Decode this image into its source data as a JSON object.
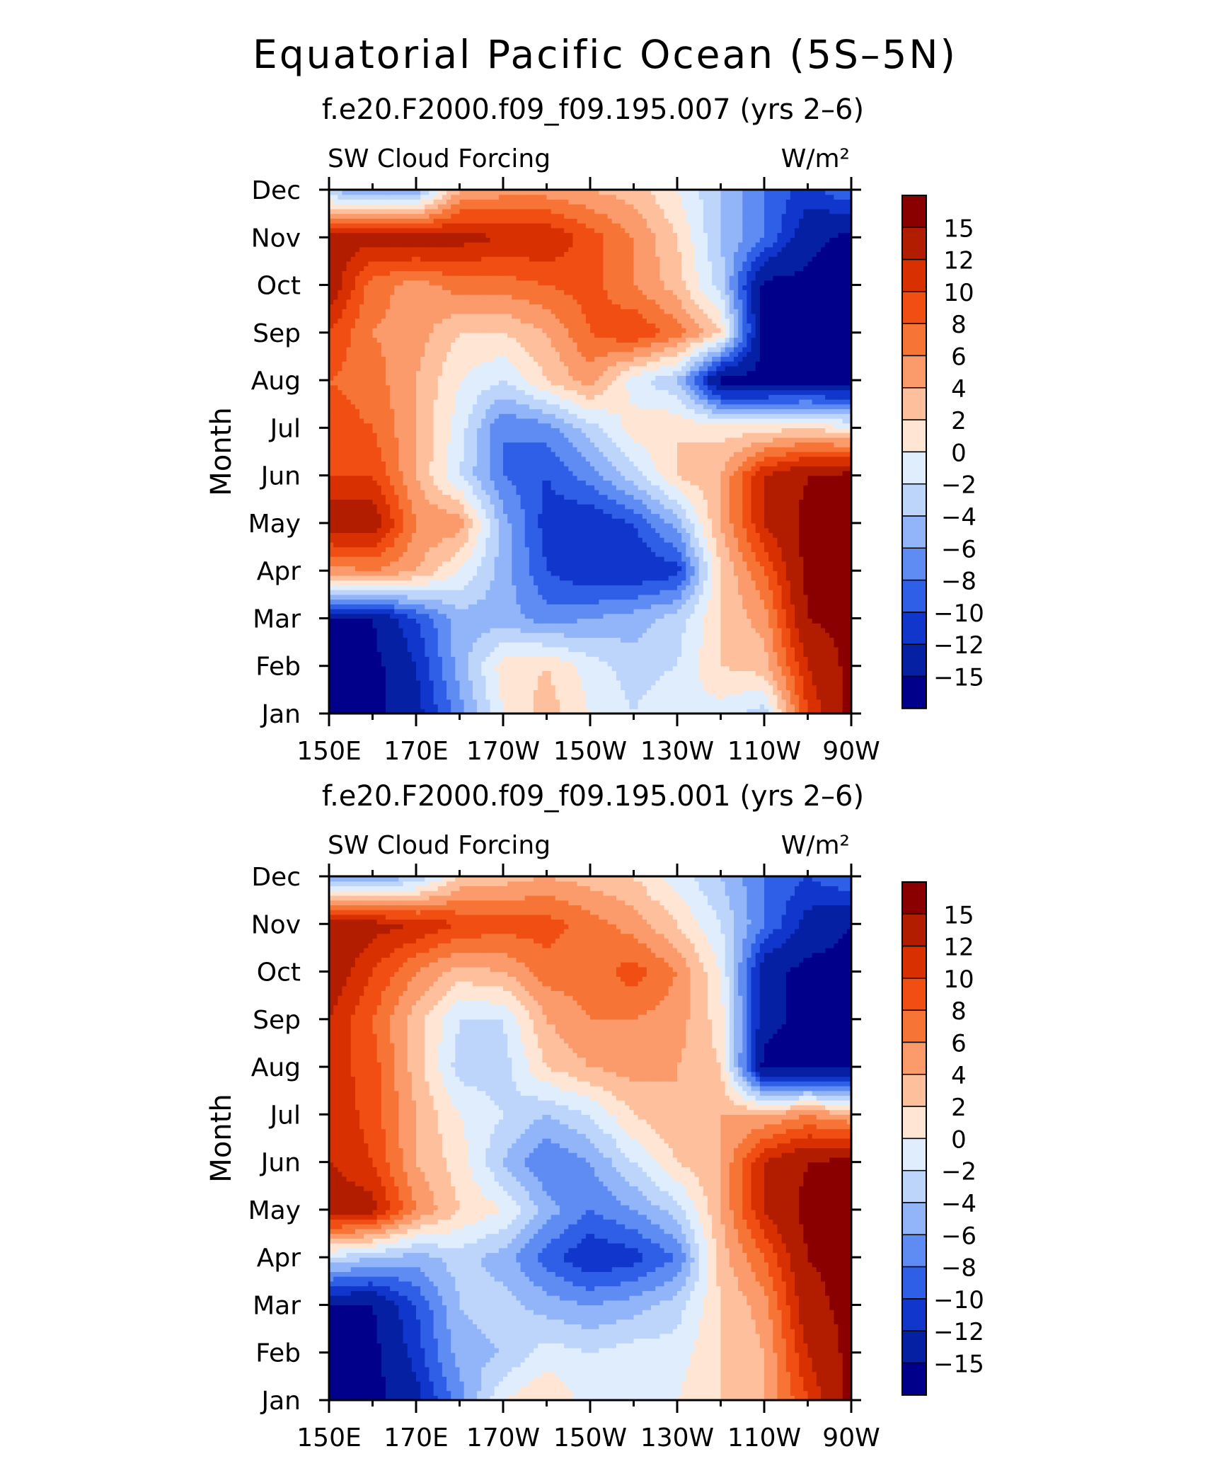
{
  "title": "Equatorial Pacific Ocean (5S–5N)",
  "colorbar_levels": [
    "15",
    "12",
    "10",
    "8",
    "6",
    "4",
    "2",
    "0",
    "−2",
    "−4",
    "−6",
    "−8",
    "−10",
    "−12",
    "−15"
  ],
  "colorbar_colors": [
    "#8a0000",
    "#b21d00",
    "#d83000",
    "#f04e12",
    "#f77437",
    "#fb9a6a",
    "#fdbf9c",
    "#fee5d4",
    "#dfedfd",
    "#bdd5fb",
    "#91b5f8",
    "#5f8cf2",
    "#2f5fe6",
    "#1136cc",
    "#0620a4",
    "#00008a"
  ],
  "chart_data": [
    {
      "type": "heatmap",
      "title": "f.e20.F2000.f09_f09.195.007 (yrs 2–6)",
      "left_label": "SW Cloud Forcing",
      "right_label": "W/m²",
      "xlabel": "",
      "ylabel": "Month",
      "x_ticks": [
        "150E",
        "170E",
        "170W",
        "150W",
        "130W",
        "110W",
        "90W"
      ],
      "y_ticks": [
        "Jan",
        "Feb",
        "Mar",
        "Apr",
        "May",
        "Jun",
        "Jul",
        "Aug",
        "Sep",
        "Oct",
        "Nov",
        "Dec"
      ],
      "x_longitudes": [
        150,
        160,
        170,
        180,
        190,
        200,
        210,
        220,
        230,
        240,
        250,
        260,
        270
      ],
      "values": [
        [
          -16,
          -16,
          -13,
          -7,
          0,
          3,
          0,
          -2,
          0,
          -1,
          -3,
          10,
          16
        ],
        [
          -16,
          -16,
          -12,
          -5,
          1,
          2,
          -1,
          -3,
          -2,
          2,
          3,
          12,
          16
        ],
        [
          -15,
          -15,
          -10,
          -5,
          -5,
          -7,
          -6,
          -5,
          -3,
          2,
          5,
          15,
          16
        ],
        [
          5,
          6,
          4,
          0,
          -5,
          -10,
          -12,
          -12,
          -11,
          2,
          8,
          16,
          16
        ],
        [
          14,
          14,
          6,
          5,
          -5,
          -11,
          -12,
          -10,
          -5,
          4,
          12,
          16,
          16
        ],
        [
          10,
          10,
          4,
          -2,
          -8,
          -10,
          -7,
          -3,
          2,
          4,
          12,
          15,
          16
        ],
        [
          9,
          8,
          4,
          -1,
          -8,
          -7,
          -3,
          1,
          2,
          1,
          1,
          2,
          0
        ],
        [
          8,
          7,
          4,
          0,
          -2,
          2,
          5,
          -1,
          -4,
          -16,
          -16,
          -16,
          -16
        ],
        [
          10,
          6,
          5,
          2,
          2,
          4,
          8,
          10,
          7,
          2,
          -16,
          -16,
          -16
        ],
        [
          14,
          7,
          5,
          7,
          7,
          8,
          9,
          6,
          3,
          -3,
          -16,
          -16,
          -16
        ],
        [
          13,
          13,
          14,
          13,
          12,
          12,
          9,
          6,
          2,
          -4,
          -8,
          -14,
          -16
        ],
        [
          -4,
          -7,
          -6,
          4,
          5,
          5,
          4,
          3,
          0,
          -4,
          -8,
          -11,
          -8
        ]
      ]
    },
    {
      "type": "heatmap",
      "title": "f.e20.F2000.f09_f09.195.001 (yrs 2–6)",
      "left_label": "SW Cloud Forcing",
      "right_label": "W/m²",
      "xlabel": "",
      "ylabel": "Month",
      "x_ticks": [
        "150E",
        "170E",
        "170W",
        "150W",
        "130W",
        "110W",
        "90W"
      ],
      "y_ticks": [
        "Jan",
        "Feb",
        "Mar",
        "Apr",
        "May",
        "Jun",
        "Jul",
        "Aug",
        "Sep",
        "Oct",
        "Nov",
        "Dec"
      ],
      "x_longitudes": [
        150,
        160,
        170,
        180,
        190,
        200,
        210,
        220,
        230,
        240,
        250,
        260,
        270
      ],
      "values": [
        [
          -16,
          -16,
          -13,
          -7,
          0,
          2,
          -1,
          -2,
          0,
          2,
          4,
          10,
          16
        ],
        [
          -16,
          -16,
          -11,
          -5,
          -4,
          -1,
          -2,
          -1,
          -1,
          2,
          4,
          12,
          16
        ],
        [
          -15,
          -15,
          -10,
          -4,
          -3,
          -5,
          -6,
          -5,
          -3,
          2,
          5,
          14,
          16
        ],
        [
          -2,
          -4,
          -5,
          -3,
          -5,
          -9,
          -12,
          -11,
          -8,
          3,
          8,
          15,
          16
        ],
        [
          14,
          13,
          6,
          2,
          0,
          -5,
          -8,
          -6,
          -3,
          4,
          12,
          16,
          16
        ],
        [
          12,
          10,
          4,
          1,
          -4,
          -8,
          -6,
          -2,
          2,
          4,
          12,
          15,
          16
        ],
        [
          12,
          9,
          4,
          0,
          -2,
          -4,
          -2,
          2,
          4,
          4,
          4,
          6,
          4
        ],
        [
          11,
          9,
          3,
          -3,
          -3,
          2,
          4,
          5,
          4,
          2,
          -16,
          -16,
          -16
        ],
        [
          12,
          8,
          3,
          -2,
          -2,
          4,
          6,
          6,
          5,
          1,
          -14,
          -16,
          -16
        ],
        [
          14,
          10,
          6,
          3,
          4,
          7,
          7,
          9,
          6,
          0,
          -14,
          -16,
          -16
        ],
        [
          14,
          13,
          12,
          10,
          9,
          9,
          7,
          5,
          2,
          -2,
          -8,
          -13,
          -15
        ],
        [
          -6,
          -6,
          -4,
          2,
          3,
          4,
          3,
          2,
          -1,
          -4,
          -8,
          -10,
          -8
        ]
      ]
    }
  ]
}
